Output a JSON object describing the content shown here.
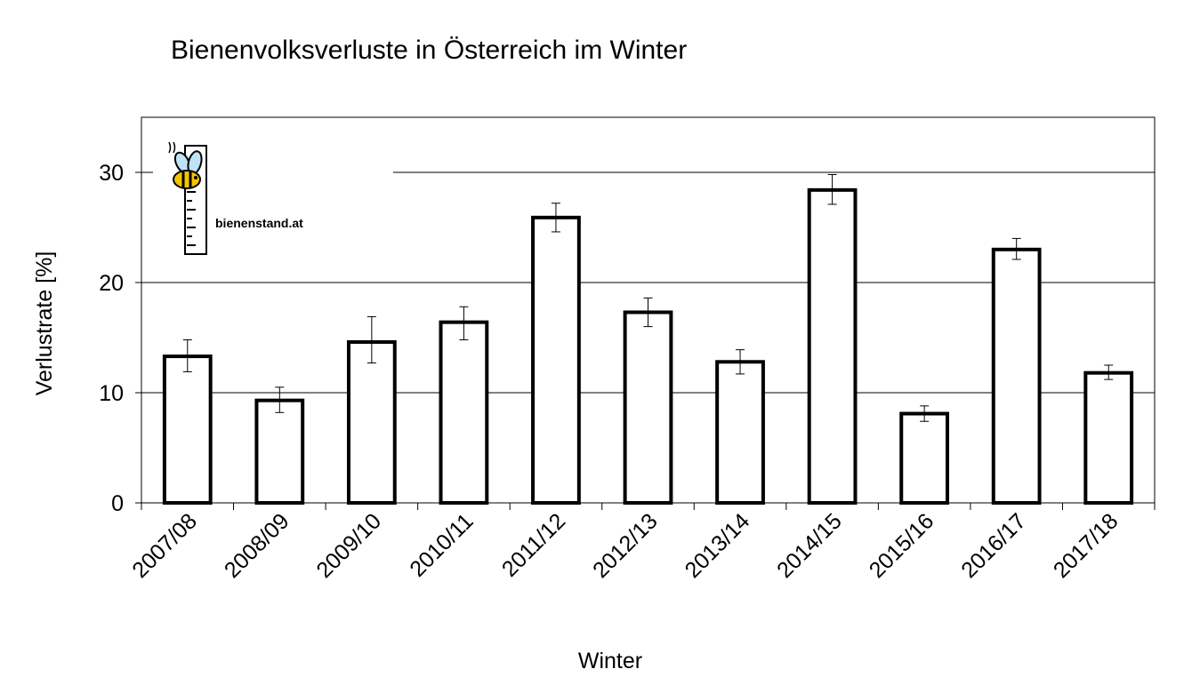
{
  "chart_data": {
    "type": "bar",
    "title": "Bienenvolksverluste in Österreich im Winter",
    "xlabel": "Winter",
    "ylabel": "Verlustrate [%]",
    "ylim": [
      0,
      35
    ],
    "yticks": [
      0,
      10,
      20,
      30
    ],
    "grid": "horizontal",
    "categories": [
      "2007/08",
      "2008/09",
      "2009/10",
      "2010/11",
      "2011/12",
      "2012/13",
      "2013/14",
      "2014/15",
      "2015/16",
      "2016/17",
      "2017/18"
    ],
    "values": [
      13.3,
      9.3,
      14.6,
      16.4,
      25.9,
      17.3,
      12.8,
      28.4,
      8.1,
      23.0,
      11.8
    ],
    "error_low": [
      11.9,
      8.2,
      12.7,
      14.8,
      24.6,
      16.0,
      11.7,
      27.1,
      7.4,
      22.1,
      11.2
    ],
    "error_high": [
      14.8,
      10.5,
      16.9,
      17.8,
      27.2,
      18.6,
      13.9,
      29.8,
      8.8,
      24.0,
      12.5
    ]
  },
  "logo": {
    "text": "bienenstand.at",
    "icon": "bee-icon"
  }
}
